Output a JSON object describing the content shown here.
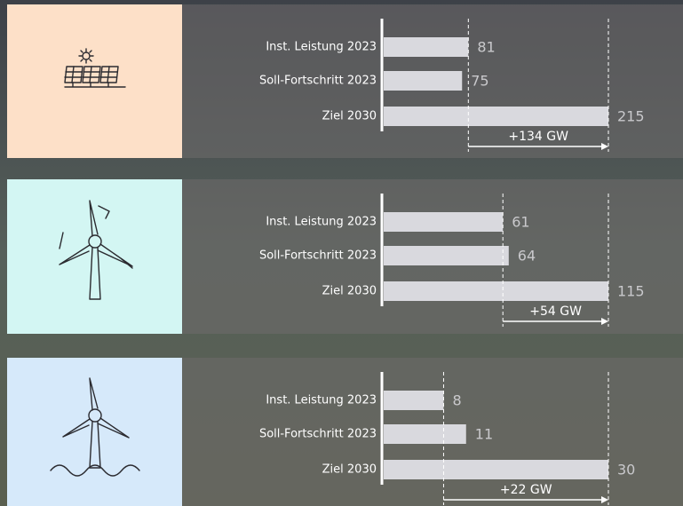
{
  "chart_data": [
    {
      "type": "bar",
      "categories": [
        "Inst. Leistung 2023",
        "Soll-Fortschritt 2023",
        "Ziel 2030"
      ],
      "values": [
        81,
        75,
        215
      ],
      "color": "#d9d9de",
      "xlim": [
        0,
        215
      ],
      "annotation": "+134 GW",
      "panel_color": "#fde0c8"
    },
    {
      "type": "bar",
      "categories": [
        "Inst. Leistung 2023",
        "Soll-Fortschritt 2023",
        "Ziel 2030"
      ],
      "values": [
        61,
        64,
        115
      ],
      "color": "#d9d9de",
      "xlim": [
        0,
        115
      ],
      "annotation": "+54 GW",
      "panel_color": "#d3f6f3"
    },
    {
      "type": "bar",
      "categories": [
        "Inst. Leistung 2023",
        "Soll-Fortschritt 2023",
        "Ziel 2030"
      ],
      "values": [
        8,
        11,
        30
      ],
      "color": "#d9d9de",
      "xlim": [
        0,
        30
      ],
      "annotation": "+22 GW",
      "panel_color": "#d6e9fa"
    }
  ]
}
